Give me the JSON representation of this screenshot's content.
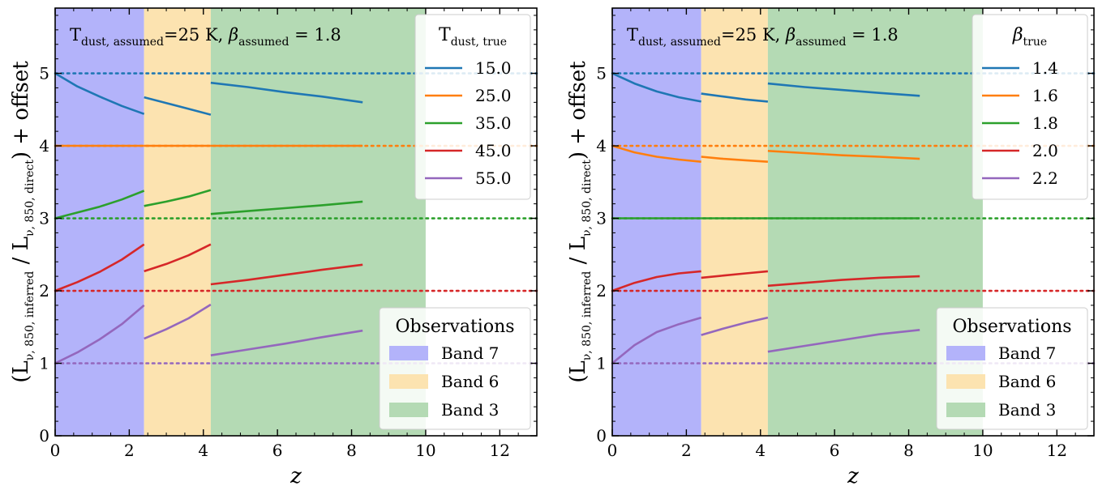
{
  "chart_data": [
    {
      "type": "line",
      "xlabel": "z",
      "ylabel": {
        "lead": "(L",
        "sub1": "ν, 850, inferred",
        "mid": " / L",
        "sub2": "ν, 850, direct",
        "tail": ") + offset"
      },
      "xlim": [
        0,
        13
      ],
      "ylim": [
        0,
        5.9
      ],
      "xticks": [
        0,
        2,
        4,
        6,
        8,
        10,
        12
      ],
      "yticks": [
        0,
        1,
        2,
        3,
        4,
        5
      ],
      "annotation": {
        "t": "T",
        "t_sub": "dust, assumed",
        "mid": "=25 K, ",
        "beta": "β",
        "b_sub": "assumed",
        "tail": " = 1.8"
      },
      "bands": [
        {
          "name": "Band 7",
          "z_range": [
            0,
            2.4
          ],
          "color": "#b3b3fa"
        },
        {
          "name": "Band 6",
          "z_range": [
            2.4,
            4.2
          ],
          "color": "#fce3b0"
        },
        {
          "name": "Band 3",
          "z_range": [
            4.2,
            10.0
          ],
          "color": "#b4dab4"
        }
      ],
      "legend_bands": {
        "title": "Observations",
        "placement": "lower-right"
      },
      "legend_series": {
        "title_main": "T",
        "title_sub": "dust, true",
        "placement": "upper-right"
      },
      "series": [
        {
          "name": "15.0",
          "color": "#1f77b4",
          "offset": 5,
          "segments": [
            {
              "x": [
                0,
                0.6,
                1.2,
                1.8,
                2.4
              ],
              "y": [
                5.0,
                4.82,
                4.68,
                4.55,
                4.44
              ]
            },
            {
              "x": [
                2.4,
                3.0,
                3.6,
                4.2
              ],
              "y": [
                4.67,
                4.59,
                4.51,
                4.43
              ]
            },
            {
              "x": [
                4.2,
                5.2,
                6.2,
                7.2,
                8.3
              ],
              "y": [
                4.87,
                4.81,
                4.74,
                4.68,
                4.6
              ]
            }
          ]
        },
        {
          "name": "25.0",
          "color": "#ff7f0e",
          "offset": 4,
          "segments": [
            {
              "x": [
                0,
                1.2,
                2.4
              ],
              "y": [
                4.0,
                4.0,
                4.0
              ]
            },
            {
              "x": [
                2.4,
                3.3,
                4.2
              ],
              "y": [
                4.0,
                4.0,
                4.0
              ]
            },
            {
              "x": [
                4.2,
                6.2,
                8.3
              ],
              "y": [
                4.0,
                4.0,
                4.0
              ]
            }
          ]
        },
        {
          "name": "35.0",
          "color": "#2ca02c",
          "offset": 3,
          "segments": [
            {
              "x": [
                0,
                0.6,
                1.2,
                1.8,
                2.4
              ],
              "y": [
                3.0,
                3.08,
                3.16,
                3.26,
                3.38
              ]
            },
            {
              "x": [
                2.4,
                3.0,
                3.6,
                4.2
              ],
              "y": [
                3.17,
                3.23,
                3.3,
                3.39
              ]
            },
            {
              "x": [
                4.2,
                5.2,
                6.2,
                7.2,
                8.3
              ],
              "y": [
                3.06,
                3.1,
                3.14,
                3.18,
                3.23
              ]
            }
          ]
        },
        {
          "name": "45.0",
          "color": "#d62728",
          "offset": 2,
          "segments": [
            {
              "x": [
                0,
                0.6,
                1.2,
                1.8,
                2.4
              ],
              "y": [
                2.0,
                2.12,
                2.26,
                2.43,
                2.64
              ]
            },
            {
              "x": [
                2.4,
                3.0,
                3.6,
                4.2
              ],
              "y": [
                2.27,
                2.37,
                2.49,
                2.64
              ]
            },
            {
              "x": [
                4.2,
                5.2,
                6.2,
                7.2,
                8.3
              ],
              "y": [
                2.09,
                2.15,
                2.22,
                2.29,
                2.36
              ]
            }
          ]
        },
        {
          "name": "55.0",
          "color": "#9467bd",
          "offset": 1,
          "segments": [
            {
              "x": [
                0,
                0.6,
                1.2,
                1.8,
                2.4
              ],
              "y": [
                1.0,
                1.15,
                1.33,
                1.54,
                1.8
              ]
            },
            {
              "x": [
                2.4,
                3.0,
                3.6,
                4.2
              ],
              "y": [
                1.34,
                1.47,
                1.62,
                1.81
              ]
            },
            {
              "x": [
                4.2,
                5.2,
                6.2,
                7.2,
                8.3
              ],
              "y": [
                1.11,
                1.19,
                1.27,
                1.36,
                1.45
              ]
            }
          ]
        }
      ]
    },
    {
      "type": "line",
      "xlabel": "z",
      "ylabel": {
        "lead": "(L",
        "sub1": "ν, 850, inferred",
        "mid": " / L",
        "sub2": "ν, 850, direct",
        "tail": ") + offset"
      },
      "xlim": [
        0,
        13
      ],
      "ylim": [
        0,
        5.9
      ],
      "xticks": [
        0,
        2,
        4,
        6,
        8,
        10,
        12
      ],
      "yticks": [
        0,
        1,
        2,
        3,
        4,
        5
      ],
      "annotation": {
        "t": "T",
        "t_sub": "dust, assumed",
        "mid": "=25 K, ",
        "beta": "β",
        "b_sub": "assumed",
        "tail": " = 1.8"
      },
      "bands": [
        {
          "name": "Band 7",
          "z_range": [
            0,
            2.4
          ],
          "color": "#b3b3fa"
        },
        {
          "name": "Band 6",
          "z_range": [
            2.4,
            4.2
          ],
          "color": "#fce3b0"
        },
        {
          "name": "Band 3",
          "z_range": [
            4.2,
            10.0
          ],
          "color": "#b4dab4"
        }
      ],
      "legend_bands": {
        "title": "Observations",
        "placement": "lower-right"
      },
      "legend_series": {
        "title_main": "β",
        "title_sub": "true",
        "placement": "upper-right"
      },
      "series": [
        {
          "name": "1.4",
          "color": "#1f77b4",
          "offset": 5,
          "segments": [
            {
              "x": [
                0,
                0.6,
                1.2,
                1.8,
                2.4
              ],
              "y": [
                5.0,
                4.86,
                4.75,
                4.67,
                4.61
              ]
            },
            {
              "x": [
                2.4,
                3.0,
                3.6,
                4.2
              ],
              "y": [
                4.72,
                4.68,
                4.64,
                4.61
              ]
            },
            {
              "x": [
                4.2,
                5.2,
                6.2,
                7.2,
                8.3
              ],
              "y": [
                4.86,
                4.81,
                4.77,
                4.73,
                4.69
              ]
            }
          ]
        },
        {
          "name": "1.6",
          "color": "#ff7f0e",
          "offset": 4,
          "segments": [
            {
              "x": [
                0,
                0.6,
                1.2,
                1.8,
                2.4
              ],
              "y": [
                4.0,
                3.91,
                3.85,
                3.81,
                3.78
              ]
            },
            {
              "x": [
                2.4,
                3.0,
                3.6,
                4.2
              ],
              "y": [
                3.85,
                3.82,
                3.8,
                3.78
              ]
            },
            {
              "x": [
                4.2,
                5.2,
                6.2,
                7.2,
                8.3
              ],
              "y": [
                3.93,
                3.9,
                3.87,
                3.85,
                3.82
              ]
            }
          ]
        },
        {
          "name": "1.8",
          "color": "#2ca02c",
          "offset": 3,
          "segments": [
            {
              "x": [
                0,
                1.2,
                2.4
              ],
              "y": [
                3.0,
                3.0,
                3.0
              ]
            },
            {
              "x": [
                2.4,
                3.3,
                4.2
              ],
              "y": [
                3.0,
                3.0,
                3.0
              ]
            },
            {
              "x": [
                4.2,
                6.2,
                8.3
              ],
              "y": [
                3.0,
                3.0,
                3.0
              ]
            }
          ]
        },
        {
          "name": "2.0",
          "color": "#d62728",
          "offset": 2,
          "segments": [
            {
              "x": [
                0,
                0.6,
                1.2,
                1.8,
                2.4
              ],
              "y": [
                2.0,
                2.11,
                2.19,
                2.24,
                2.27
              ]
            },
            {
              "x": [
                2.4,
                3.0,
                3.6,
                4.2
              ],
              "y": [
                2.18,
                2.21,
                2.24,
                2.27
              ]
            },
            {
              "x": [
                4.2,
                5.2,
                6.2,
                7.2,
                8.3
              ],
              "y": [
                2.07,
                2.11,
                2.15,
                2.18,
                2.2
              ]
            }
          ]
        },
        {
          "name": "2.2",
          "color": "#9467bd",
          "offset": 1,
          "segments": [
            {
              "x": [
                0,
                0.6,
                1.2,
                1.8,
                2.4
              ],
              "y": [
                1.0,
                1.25,
                1.43,
                1.54,
                1.63
              ]
            },
            {
              "x": [
                2.4,
                3.0,
                3.6,
                4.2
              ],
              "y": [
                1.39,
                1.48,
                1.56,
                1.63
              ]
            },
            {
              "x": [
                4.2,
                5.2,
                6.2,
                7.2,
                8.3
              ],
              "y": [
                1.16,
                1.24,
                1.32,
                1.4,
                1.46
              ]
            }
          ]
        }
      ]
    }
  ]
}
